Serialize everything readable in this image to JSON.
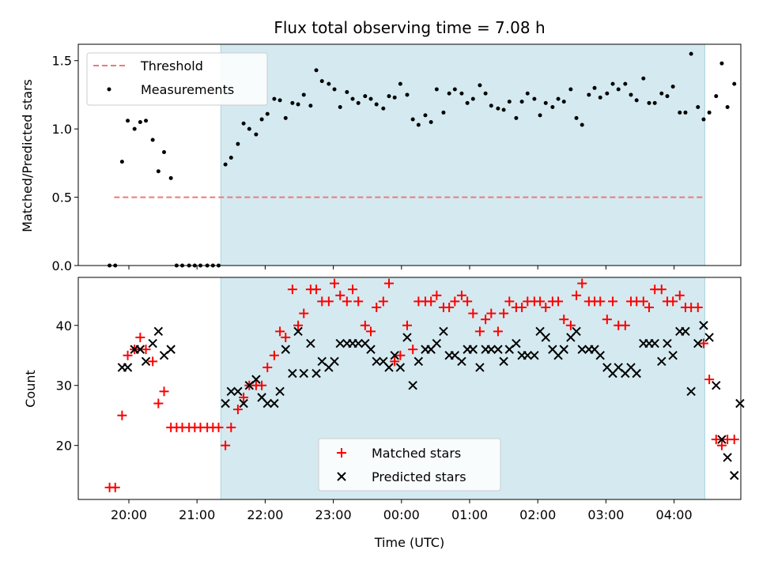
{
  "chart_data": [
    {
      "type": "scatter",
      "title": "Flux total observing time = 7.08 h",
      "xlabel": "",
      "ylabel": "Matched/Predicted stars",
      "ylim": [
        0,
        1.62
      ],
      "yticks": [
        0.0,
        0.5,
        1.0,
        1.5
      ],
      "ytick_labels": [
        "0.0",
        "0.5",
        "1.0",
        "1.5"
      ],
      "shaded_region": {
        "start": "21:21",
        "end": "04:27",
        "color": "#d4eaf0"
      },
      "threshold": {
        "name": "Threshold",
        "value": 0.5,
        "start": "19:47",
        "end": "04:27",
        "color": "#f07878"
      },
      "legend": {
        "position": "upper-left"
      },
      "series": [
        {
          "name": "Measurements",
          "color": "#000000",
          "points": [
            [
              "19:43",
              0.0
            ],
            [
              "19:48",
              0.0
            ],
            [
              "19:54",
              0.76
            ],
            [
              "19:59",
              1.06
            ],
            [
              "20:05",
              1.0
            ],
            [
              "20:10",
              1.05
            ],
            [
              "20:15",
              1.06
            ],
            [
              "20:21",
              0.92
            ],
            [
              "20:26",
              0.69
            ],
            [
              "20:31",
              0.83
            ],
            [
              "20:37",
              0.64
            ],
            [
              "20:42",
              0.0
            ],
            [
              "20:47",
              0.0
            ],
            [
              "20:53",
              0.0
            ],
            [
              "20:58",
              0.0
            ],
            [
              "21:03",
              0.0
            ],
            [
              "21:09",
              0.0
            ],
            [
              "21:14",
              0.0
            ],
            [
              "21:19",
              0.0
            ],
            [
              "21:25",
              0.74
            ],
            [
              "21:30",
              0.79
            ],
            [
              "21:36",
              0.89
            ],
            [
              "21:41",
              1.04
            ],
            [
              "21:46",
              1.0
            ],
            [
              "21:52",
              0.96
            ],
            [
              "21:57",
              1.07
            ],
            [
              "22:02",
              1.11
            ],
            [
              "22:08",
              1.22
            ],
            [
              "22:13",
              1.21
            ],
            [
              "22:18",
              1.08
            ],
            [
              "22:24",
              1.19
            ],
            [
              "22:29",
              1.18
            ],
            [
              "22:34",
              1.25
            ],
            [
              "22:40",
              1.17
            ],
            [
              "22:45",
              1.43
            ],
            [
              "22:50",
              1.35
            ],
            [
              "22:56",
              1.33
            ],
            [
              "23:01",
              1.29
            ],
            [
              "23:06",
              1.16
            ],
            [
              "23:12",
              1.27
            ],
            [
              "23:17",
              1.22
            ],
            [
              "23:22",
              1.19
            ],
            [
              "23:28",
              1.24
            ],
            [
              "23:33",
              1.22
            ],
            [
              "23:38",
              1.18
            ],
            [
              "23:44",
              1.15
            ],
            [
              "23:49",
              1.24
            ],
            [
              "23:54",
              1.23
            ],
            [
              "23:59",
              1.33
            ],
            [
              "00:05",
              1.25
            ],
            [
              "00:10",
              1.07
            ],
            [
              "00:15",
              1.03
            ],
            [
              "00:21",
              1.1
            ],
            [
              "00:26",
              1.05
            ],
            [
              "00:31",
              1.29
            ],
            [
              "00:37",
              1.12
            ],
            [
              "00:42",
              1.26
            ],
            [
              "00:47",
              1.29
            ],
            [
              "00:53",
              1.26
            ],
            [
              "00:58",
              1.19
            ],
            [
              "01:03",
              1.22
            ],
            [
              "01:09",
              1.32
            ],
            [
              "01:14",
              1.26
            ],
            [
              "01:19",
              1.17
            ],
            [
              "01:25",
              1.15
            ],
            [
              "01:30",
              1.14
            ],
            [
              "01:35",
              1.2
            ],
            [
              "01:41",
              1.08
            ],
            [
              "01:46",
              1.2
            ],
            [
              "01:51",
              1.26
            ],
            [
              "01:57",
              1.22
            ],
            [
              "02:02",
              1.1
            ],
            [
              "02:07",
              1.19
            ],
            [
              "02:13",
              1.16
            ],
            [
              "02:18",
              1.22
            ],
            [
              "02:23",
              1.2
            ],
            [
              "02:29",
              1.29
            ],
            [
              "02:34",
              1.08
            ],
            [
              "02:39",
              1.03
            ],
            [
              "02:45",
              1.25
            ],
            [
              "02:50",
              1.3
            ],
            [
              "02:55",
              1.23
            ],
            [
              "03:01",
              1.26
            ],
            [
              "03:06",
              1.33
            ],
            [
              "03:11",
              1.29
            ],
            [
              "03:17",
              1.33
            ],
            [
              "03:22",
              1.25
            ],
            [
              "03:27",
              1.21
            ],
            [
              "03:33",
              1.37
            ],
            [
              "03:38",
              1.19
            ],
            [
              "03:43",
              1.19
            ],
            [
              "03:49",
              1.26
            ],
            [
              "03:54",
              1.24
            ],
            [
              "03:59",
              1.31
            ],
            [
              "04:05",
              1.12
            ],
            [
              "04:10",
              1.12
            ],
            [
              "04:15",
              1.55
            ],
            [
              "04:21",
              1.16
            ],
            [
              "04:26",
              1.07
            ],
            [
              "04:31",
              1.12
            ],
            [
              "04:37",
              1.24
            ],
            [
              "04:42",
              1.48
            ],
            [
              "04:47",
              1.16
            ],
            [
              "04:53",
              1.33
            ],
            [
              "04:26b",
              null
            ]
          ]
        }
      ]
    },
    {
      "type": "scatter",
      "title": "",
      "xlabel": "Time (UTC)",
      "ylabel": "Count",
      "ylim": [
        11,
        48
      ],
      "yticks": [
        20,
        30,
        40
      ],
      "ytick_labels": [
        "20",
        "30",
        "40"
      ],
      "xticks": [
        "20:00",
        "21:00",
        "22:00",
        "23:00",
        "00:00",
        "01:00",
        "02:00",
        "03:00",
        "04:00"
      ],
      "shaded_region": {
        "start": "21:21",
        "end": "04:27",
        "color": "#d4eaf0"
      },
      "legend": {
        "position": "lower-center"
      },
      "series": [
        {
          "name": "Matched stars",
          "color": "#ff0000",
          "marker": "plus",
          "points": []
        },
        {
          "name": "Predicted stars",
          "color": "#000000",
          "marker": "x",
          "points": []
        }
      ]
    }
  ]
}
